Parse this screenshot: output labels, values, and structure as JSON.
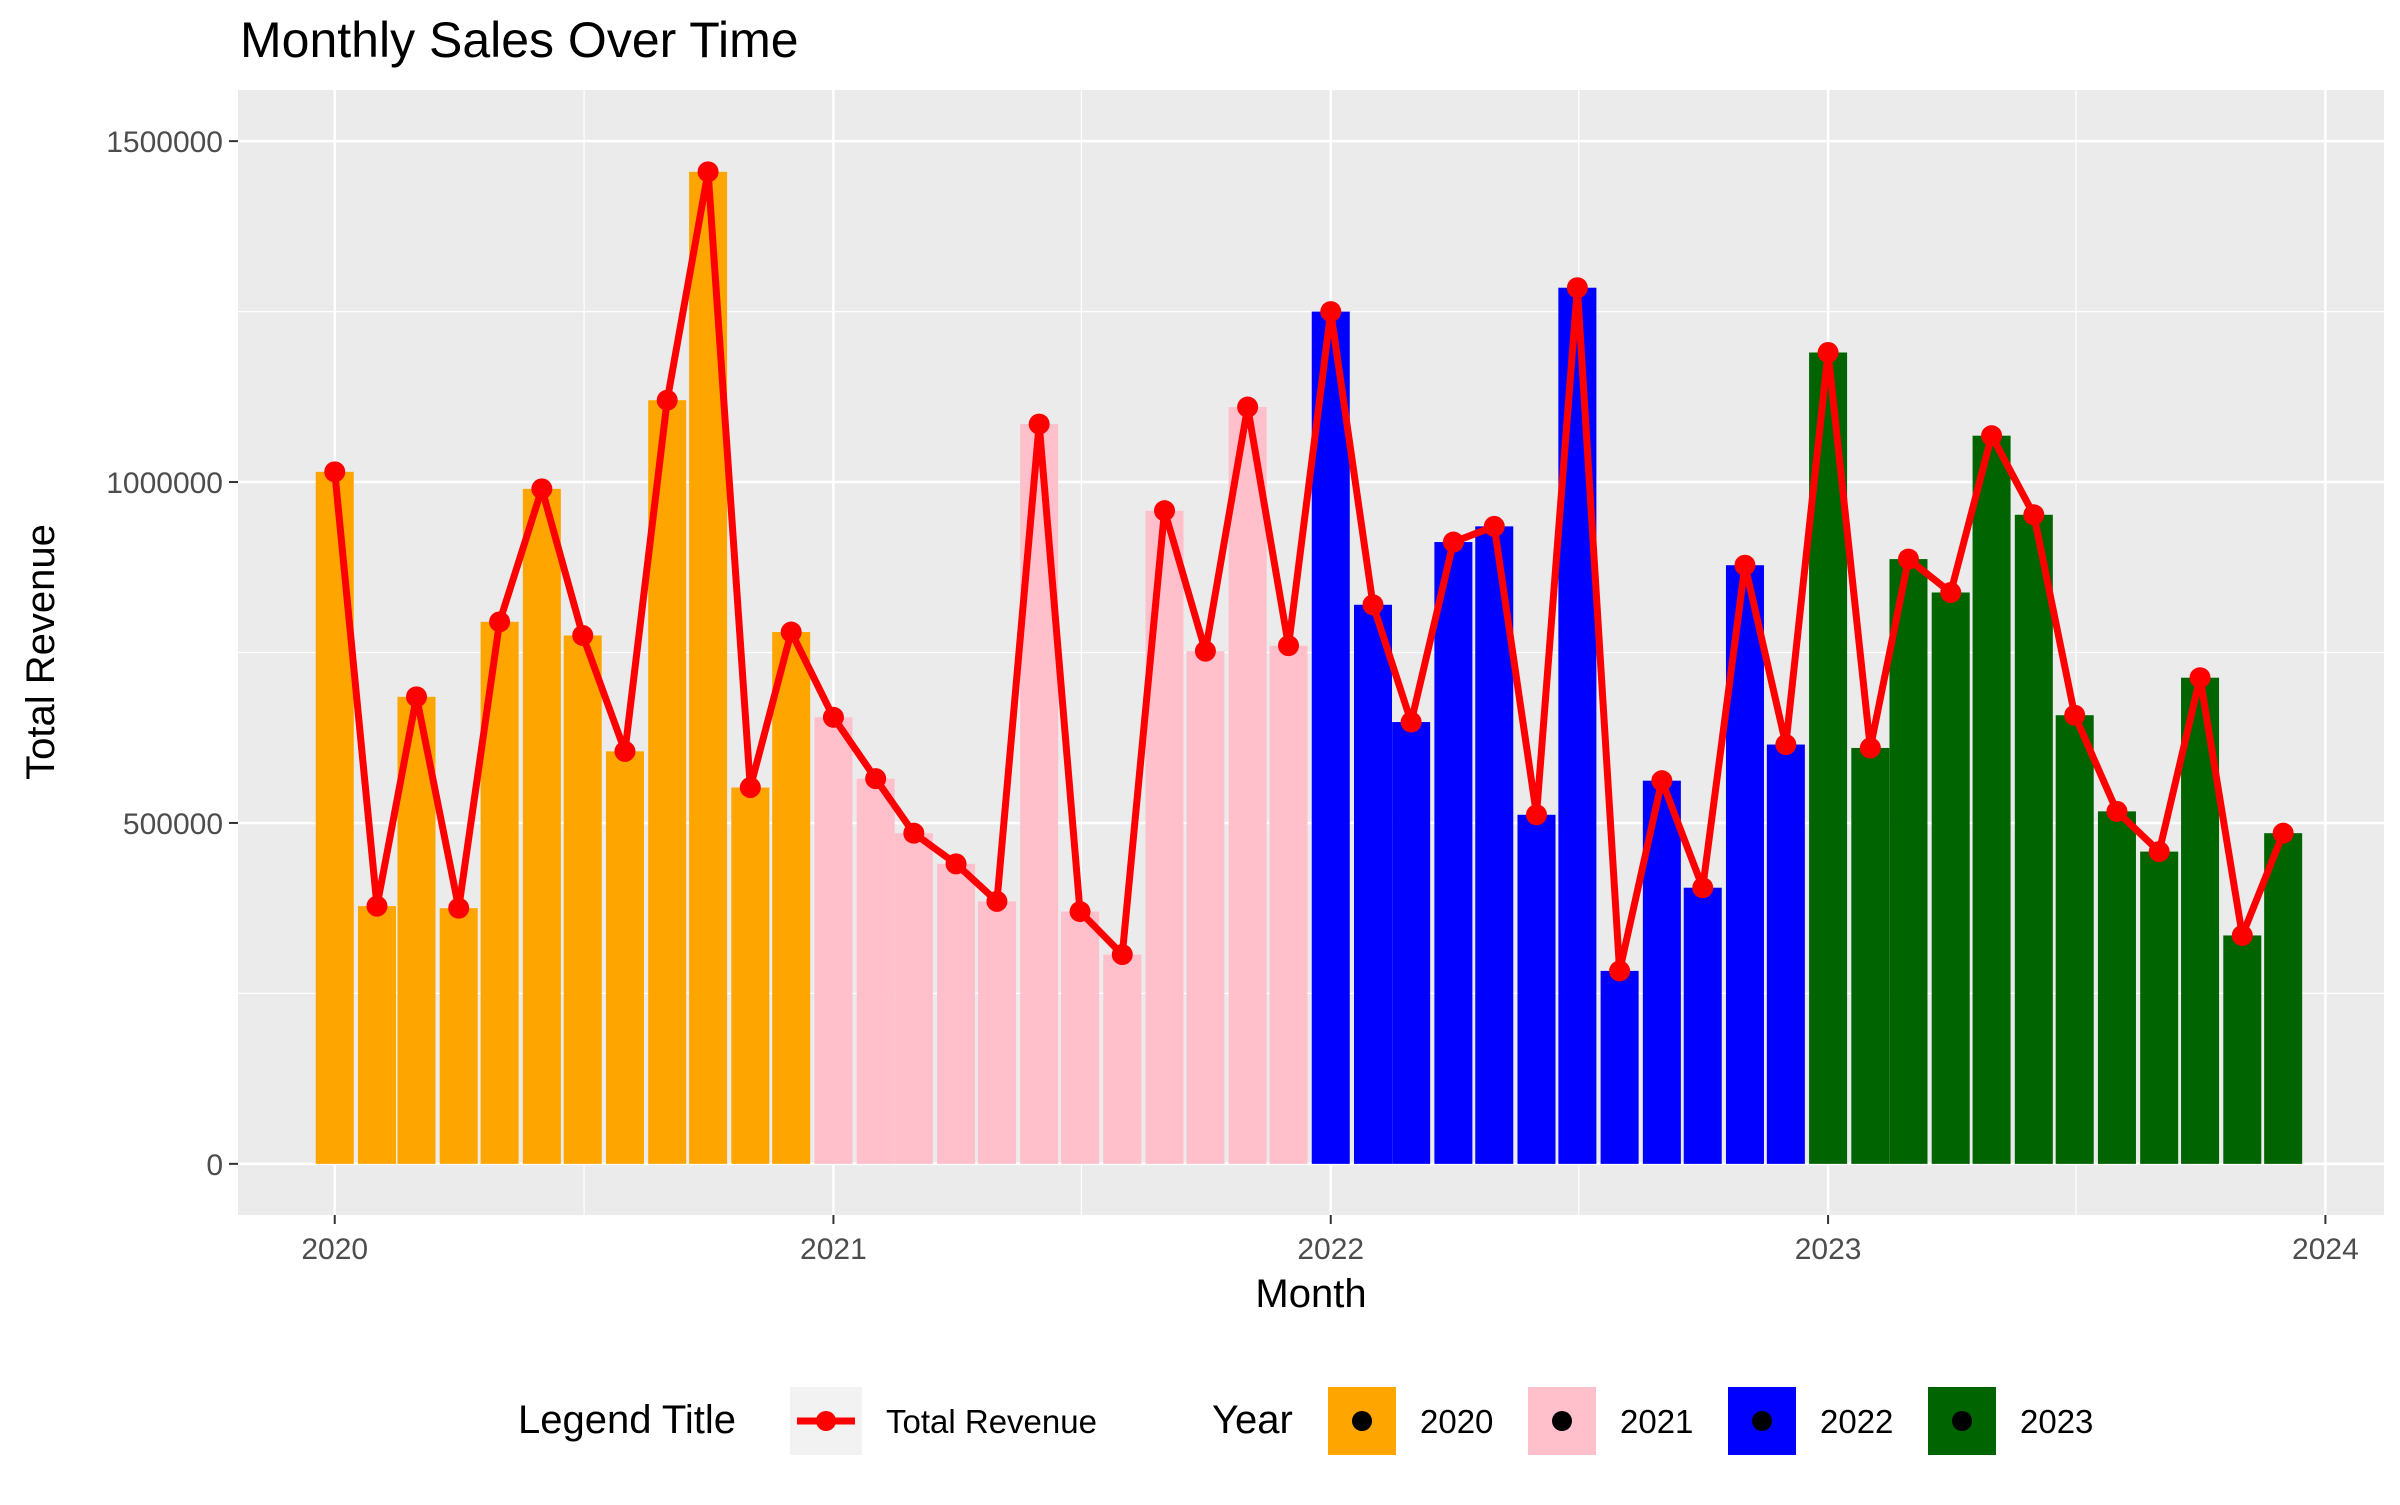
{
  "chart_data": {
    "type": "bar",
    "title": "Monthly Sales Over Time",
    "xlabel": "Month",
    "ylabel": "Total Revenue",
    "xlim": [
      "2019-10-22",
      "2024-02-13"
    ],
    "ylim": [
      -75000,
      1575000
    ],
    "x_ticks": [
      "2020",
      "2021",
      "2022",
      "2023",
      "2024"
    ],
    "y_ticks": [
      0,
      500000,
      1000000,
      1500000
    ],
    "y_tick_labels": [
      "0",
      "500000",
      "1000000",
      "1500000"
    ],
    "grid": true,
    "legend_position": "bottom",
    "line_legend": {
      "title": "Legend Title",
      "label": "Total Revenue",
      "color": "#ff0000"
    },
    "fill_legend": {
      "title": "Year",
      "items": [
        {
          "label": "2020",
          "color": "#ffa500"
        },
        {
          "label": "2021",
          "color": "#ffc0cb"
        },
        {
          "label": "2022",
          "color": "#0000ff"
        },
        {
          "label": "2023",
          "color": "#006400"
        }
      ]
    },
    "colors": {
      "panel": "#ebebeb",
      "grid": "#ffffff",
      "line": "#ff0000",
      "axis_text": "#4d4d4d"
    },
    "months": [
      "2020-01-01",
      "2020-02-01",
      "2020-03-01",
      "2020-04-01",
      "2020-05-01",
      "2020-06-01",
      "2020-07-01",
      "2020-08-01",
      "2020-09-01",
      "2020-10-01",
      "2020-11-01",
      "2020-12-01",
      "2021-01-01",
      "2021-02-01",
      "2021-03-01",
      "2021-04-01",
      "2021-05-01",
      "2021-06-01",
      "2021-07-01",
      "2021-08-01",
      "2021-09-01",
      "2021-10-01",
      "2021-11-01",
      "2021-12-01",
      "2022-01-01",
      "2022-02-01",
      "2022-03-01",
      "2022-04-01",
      "2022-05-01",
      "2022-06-01",
      "2022-07-01",
      "2022-08-01",
      "2022-09-01",
      "2022-10-01",
      "2022-11-01",
      "2022-12-01",
      "2023-01-01",
      "2023-02-01",
      "2023-03-01",
      "2023-04-01",
      "2023-05-01",
      "2023-06-01",
      "2023-07-01",
      "2023-08-01",
      "2023-09-01",
      "2023-10-01",
      "2023-11-01",
      "2023-12-01"
    ],
    "values": [
      1015000,
      378000,
      685000,
      375000,
      795000,
      990000,
      775000,
      605000,
      1120000,
      1455000,
      552000,
      780000,
      655000,
      565000,
      485000,
      440000,
      385000,
      1085000,
      370000,
      307000,
      958000,
      752000,
      1110000,
      760000,
      1250000,
      820000,
      648000,
      912000,
      935000,
      512000,
      1285000,
      283000,
      562000,
      405000,
      878000,
      615000,
      1190000,
      610000,
      887000,
      838000,
      1068000,
      952000,
      658000,
      517000,
      458000,
      713000,
      335000,
      485000
    ]
  }
}
